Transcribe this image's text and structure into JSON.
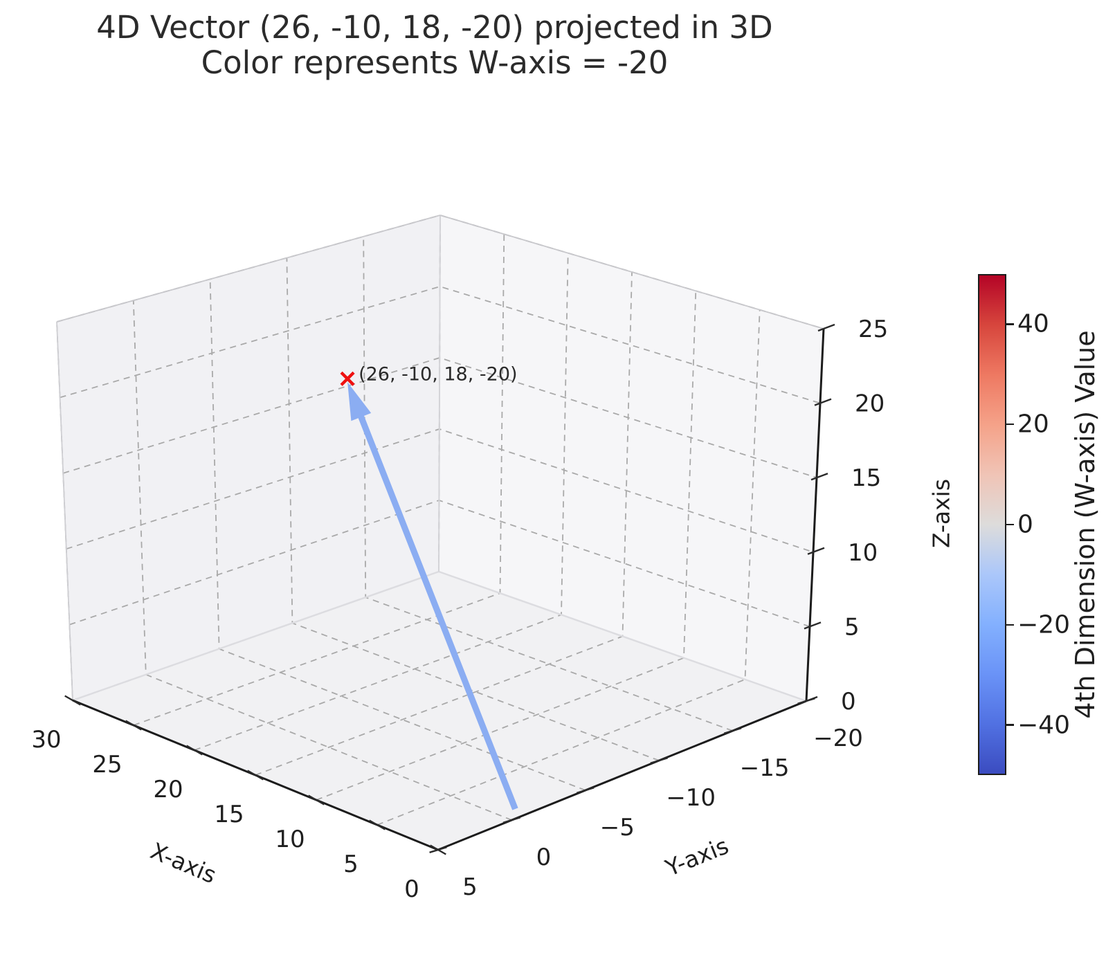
{
  "title": {
    "line1": "4D Vector (26, -10, 18, -20) projected in 3D",
    "line2": "Color represents W-axis = -20"
  },
  "axes": {
    "x": {
      "label": "X-axis",
      "ticks": [
        {
          "v": 0,
          "t": "0"
        },
        {
          "v": 5,
          "t": "5"
        },
        {
          "v": 10,
          "t": "10"
        },
        {
          "v": 15,
          "t": "15"
        },
        {
          "v": 20,
          "t": "20"
        },
        {
          "v": 25,
          "t": "25"
        },
        {
          "v": 30,
          "t": "30"
        }
      ]
    },
    "y": {
      "label": "Y-axis",
      "ticks": [
        {
          "v": 5,
          "t": "5"
        },
        {
          "v": 0,
          "t": "0"
        },
        {
          "v": -5,
          "t": "−5"
        },
        {
          "v": -10,
          "t": "−10"
        },
        {
          "v": -15,
          "t": "−15"
        },
        {
          "v": -20,
          "t": "−20"
        }
      ]
    },
    "z": {
      "label": "Z-axis",
      "ticks": [
        {
          "v": 0,
          "t": "0"
        },
        {
          "v": 5,
          "t": "5"
        },
        {
          "v": 10,
          "t": "10"
        },
        {
          "v": 15,
          "t": "15"
        },
        {
          "v": 20,
          "t": "20"
        },
        {
          "v": 25,
          "t": "25"
        }
      ]
    }
  },
  "chart_data": {
    "type": "quiver3d",
    "origin": {
      "x": 0,
      "y": 0,
      "z": 0
    },
    "vector": {
      "x": 26,
      "y": -10,
      "z": 18,
      "w": -20
    },
    "annotation": "(26, -10, 18, -20)",
    "xlim": [
      0,
      30
    ],
    "ylim": [
      5,
      -20
    ],
    "zlim": [
      0,
      25
    ],
    "colormap": "coolwarm",
    "clim": [
      -50,
      50
    ],
    "arrow_color": "#8badf2",
    "marker": "x",
    "marker_color": "#ee1111",
    "grid": true
  },
  "colorbar": {
    "label": "4th Dimension (W-axis) Value",
    "vmin": -50,
    "vmax": 50,
    "ticks": [
      {
        "v": 40,
        "t": "40"
      },
      {
        "v": 20,
        "t": "20"
      },
      {
        "v": 0,
        "t": "0"
      },
      {
        "v": -20,
        "t": "−20"
      },
      {
        "v": -40,
        "t": "−40"
      }
    ],
    "gradient": [
      "#3b4cc0",
      "#5171e2",
      "#6a93f7",
      "#83b0fe",
      "#abc7fa",
      "#dddcdb",
      "#f0c4b6",
      "#f5a289",
      "#ee7962",
      "#d7463d",
      "#b40426"
    ]
  }
}
